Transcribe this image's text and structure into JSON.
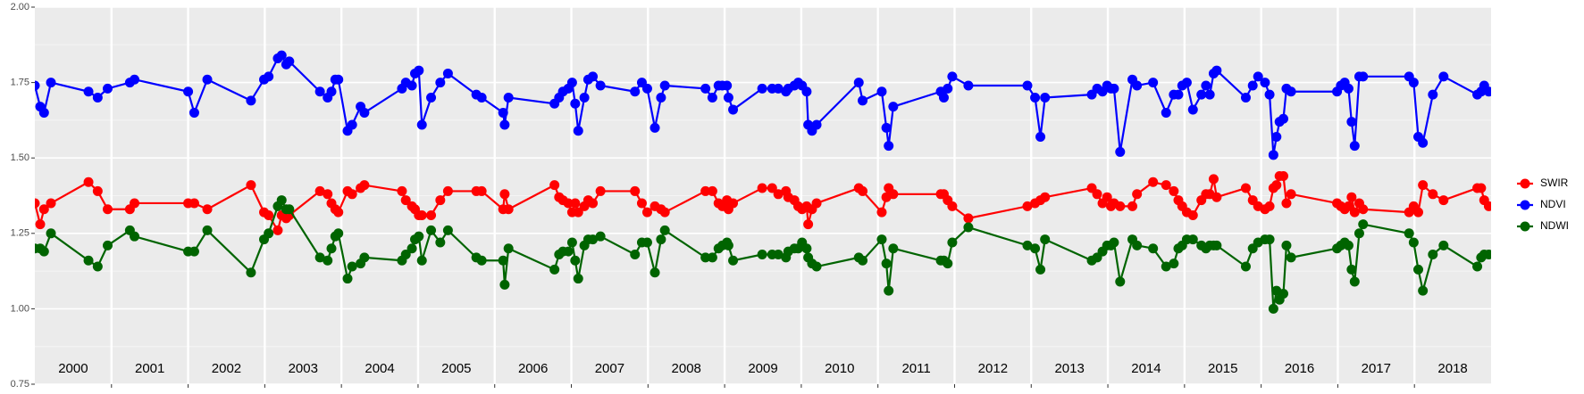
{
  "chart_data": {
    "type": "line",
    "x": [
      2000.0,
      2000.07,
      2000.12,
      2000.21,
      2000.7,
      2000.82,
      2000.95,
      2001.24,
      2001.3,
      2002.0,
      2002.08,
      2002.25,
      2002.82,
      2002.99,
      2003.05,
      2003.17,
      2003.22,
      2003.28,
      2003.32,
      2003.72,
      2003.82,
      2003.87,
      2003.92,
      2003.96,
      2004.08,
      2004.14,
      2004.25,
      2004.3,
      2004.79,
      2004.84,
      2004.92,
      2004.96,
      2005.01,
      2005.05,
      2005.17,
      2005.29,
      2005.39,
      2005.76,
      2005.83,
      2006.11,
      2006.13,
      2006.18,
      2006.78,
      2006.84,
      2006.89,
      2006.96,
      2007.01,
      2007.05,
      2007.09,
      2007.17,
      2007.22,
      2007.28,
      2007.38,
      2007.83,
      2007.92,
      2007.99,
      2008.09,
      2008.17,
      2008.22,
      2008.75,
      2008.84,
      2008.92,
      2008.97,
      2009.03,
      2009.05,
      2009.11,
      2009.49,
      2009.62,
      2009.7,
      2009.8,
      2009.83,
      2009.91,
      2009.96,
      2010.01,
      2010.07,
      2010.09,
      2010.14,
      2010.2,
      2010.75,
      2010.8,
      2011.05,
      2011.11,
      2011.14,
      2011.2,
      2011.82,
      2011.86,
      2011.91,
      2011.97,
      2012.18,
      2012.95,
      2013.05,
      2013.12,
      2013.18,
      2013.79,
      2013.86,
      2013.93,
      2013.99,
      2014.04,
      2014.08,
      2014.16,
      2014.32,
      2014.38,
      2014.59,
      2014.76,
      2014.86,
      2014.92,
      2014.97,
      2015.03,
      2015.11,
      2015.22,
      2015.28,
      2015.33,
      2015.38,
      2015.42,
      2015.8,
      2015.89,
      2015.96,
      2016.05,
      2016.11,
      2016.16,
      2016.2,
      2016.24,
      2016.29,
      2016.33,
      2016.39,
      2016.99,
      2017.04,
      2017.09,
      2017.14,
      2017.18,
      2017.22,
      2017.28,
      2017.33,
      2017.93,
      2017.99,
      2018.05,
      2018.11,
      2018.24,
      2018.38,
      2018.82,
      2018.87,
      2018.91,
      2018.97
    ],
    "series": [
      {
        "name": "SWIR",
        "color": "#ff0000",
        "values": [
          1.35,
          1.28,
          1.33,
          1.35,
          1.42,
          1.39,
          1.33,
          1.33,
          1.35,
          1.35,
          1.35,
          1.33,
          1.41,
          1.32,
          1.31,
          1.26,
          1.31,
          1.3,
          1.31,
          1.39,
          1.38,
          1.35,
          1.33,
          1.32,
          1.39,
          1.38,
          1.4,
          1.41,
          1.39,
          1.36,
          1.34,
          1.33,
          1.31,
          1.31,
          1.31,
          1.36,
          1.39,
          1.39,
          1.39,
          1.33,
          1.38,
          1.33,
          1.41,
          1.37,
          1.36,
          1.35,
          1.32,
          1.35,
          1.32,
          1.34,
          1.36,
          1.35,
          1.39,
          1.39,
          1.35,
          1.32,
          1.34,
          1.33,
          1.32,
          1.39,
          1.39,
          1.35,
          1.34,
          1.36,
          1.33,
          1.35,
          1.4,
          1.4,
          1.38,
          1.39,
          1.37,
          1.36,
          1.34,
          1.33,
          1.34,
          1.28,
          1.33,
          1.35,
          1.4,
          1.39,
          1.32,
          1.37,
          1.4,
          1.38,
          1.38,
          1.38,
          1.36,
          1.34,
          1.3,
          1.34,
          1.35,
          1.36,
          1.37,
          1.4,
          1.38,
          1.35,
          1.37,
          1.34,
          1.35,
          1.34,
          1.34,
          1.38,
          1.42,
          1.41,
          1.39,
          1.36,
          1.34,
          1.32,
          1.31,
          1.36,
          1.38,
          1.38,
          1.43,
          1.37,
          1.4,
          1.36,
          1.34,
          1.33,
          1.34,
          1.4,
          1.41,
          1.44,
          1.44,
          1.35,
          1.38,
          1.35,
          1.34,
          1.33,
          1.34,
          1.37,
          1.32,
          1.35,
          1.33,
          1.32,
          1.34,
          1.32,
          1.41,
          1.38,
          1.36,
          1.4,
          1.4,
          1.36,
          1.34
        ]
      },
      {
        "name": "NDVI",
        "color": "#0000ff",
        "values": [
          1.74,
          1.67,
          1.65,
          1.75,
          1.72,
          1.7,
          1.73,
          1.75,
          1.76,
          1.72,
          1.65,
          1.76,
          1.69,
          1.76,
          1.77,
          1.83,
          1.84,
          1.81,
          1.82,
          1.72,
          1.7,
          1.72,
          1.76,
          1.76,
          1.59,
          1.61,
          1.67,
          1.65,
          1.73,
          1.75,
          1.74,
          1.78,
          1.79,
          1.61,
          1.7,
          1.75,
          1.78,
          1.71,
          1.7,
          1.65,
          1.61,
          1.7,
          1.68,
          1.7,
          1.72,
          1.73,
          1.75,
          1.68,
          1.59,
          1.7,
          1.76,
          1.77,
          1.74,
          1.72,
          1.75,
          1.73,
          1.6,
          1.7,
          1.74,
          1.73,
          1.7,
          1.74,
          1.74,
          1.74,
          1.7,
          1.66,
          1.73,
          1.73,
          1.73,
          1.72,
          1.73,
          1.74,
          1.75,
          1.74,
          1.72,
          1.61,
          1.59,
          1.61,
          1.75,
          1.69,
          1.72,
          1.6,
          1.54,
          1.67,
          1.72,
          1.7,
          1.73,
          1.77,
          1.74,
          1.74,
          1.7,
          1.57,
          1.7,
          1.71,
          1.73,
          1.72,
          1.74,
          1.73,
          1.73,
          1.52,
          1.76,
          1.74,
          1.75,
          1.65,
          1.71,
          1.71,
          1.74,
          1.75,
          1.66,
          1.71,
          1.74,
          1.71,
          1.78,
          1.79,
          1.7,
          1.74,
          1.77,
          1.75,
          1.71,
          1.51,
          1.57,
          1.62,
          1.63,
          1.73,
          1.72,
          1.72,
          1.74,
          1.75,
          1.73,
          1.62,
          1.54,
          1.77,
          1.77,
          1.77,
          1.75,
          1.57,
          1.55,
          1.71,
          1.77,
          1.71,
          1.72,
          1.74,
          1.72
        ]
      },
      {
        "name": "NDWI",
        "color": "#006400",
        "values": [
          1.2,
          1.2,
          1.19,
          1.25,
          1.16,
          1.14,
          1.21,
          1.26,
          1.24,
          1.19,
          1.19,
          1.26,
          1.12,
          1.23,
          1.25,
          1.34,
          1.36,
          1.33,
          1.33,
          1.17,
          1.16,
          1.2,
          1.24,
          1.25,
          1.1,
          1.14,
          1.15,
          1.17,
          1.16,
          1.18,
          1.2,
          1.23,
          1.24,
          1.16,
          1.26,
          1.22,
          1.26,
          1.17,
          1.16,
          1.16,
          1.08,
          1.2,
          1.13,
          1.18,
          1.19,
          1.19,
          1.22,
          1.16,
          1.1,
          1.21,
          1.23,
          1.23,
          1.24,
          1.18,
          1.22,
          1.22,
          1.12,
          1.23,
          1.26,
          1.17,
          1.17,
          1.2,
          1.21,
          1.22,
          1.21,
          1.16,
          1.18,
          1.18,
          1.18,
          1.17,
          1.19,
          1.2,
          1.2,
          1.22,
          1.2,
          1.17,
          1.15,
          1.14,
          1.17,
          1.16,
          1.23,
          1.15,
          1.06,
          1.2,
          1.16,
          1.16,
          1.15,
          1.22,
          1.27,
          1.21,
          1.2,
          1.13,
          1.23,
          1.16,
          1.17,
          1.19,
          1.21,
          1.21,
          1.22,
          1.09,
          1.23,
          1.21,
          1.2,
          1.14,
          1.15,
          1.2,
          1.21,
          1.23,
          1.23,
          1.21,
          1.2,
          1.21,
          1.21,
          1.21,
          1.14,
          1.2,
          1.22,
          1.23,
          1.23,
          1.0,
          1.06,
          1.03,
          1.05,
          1.21,
          1.17,
          1.2,
          1.21,
          1.22,
          1.21,
          1.13,
          1.09,
          1.25,
          1.28,
          1.25,
          1.22,
          1.13,
          1.06,
          1.18,
          1.21,
          1.14,
          1.17,
          1.18,
          1.18
        ]
      }
    ],
    "xlim": [
      2000,
      2019
    ],
    "xticks": [
      2001,
      2002,
      2003,
      2004,
      2005,
      2006,
      2007,
      2008,
      2009,
      2010,
      2011,
      2012,
      2013,
      2014,
      2015,
      2016,
      2017,
      2018
    ],
    "year_labels": [
      "2000",
      "2001",
      "2002",
      "2003",
      "2004",
      "2005",
      "2006",
      "2007",
      "2008",
      "2009",
      "2010",
      "2011",
      "2012",
      "2013",
      "2014",
      "2015",
      "2016",
      "2017",
      "2018"
    ],
    "ylim": [
      0.75,
      2.0
    ],
    "yticks": [
      0.75,
      {
        "value": 1,
        "label": "1.00"
      },
      1.25,
      {
        "value": 1.5,
        "label": "1.50"
      },
      1.75,
      {
        "value": 2,
        "label": "2.00"
      }
    ],
    "grid": true,
    "legend": "right"
  }
}
